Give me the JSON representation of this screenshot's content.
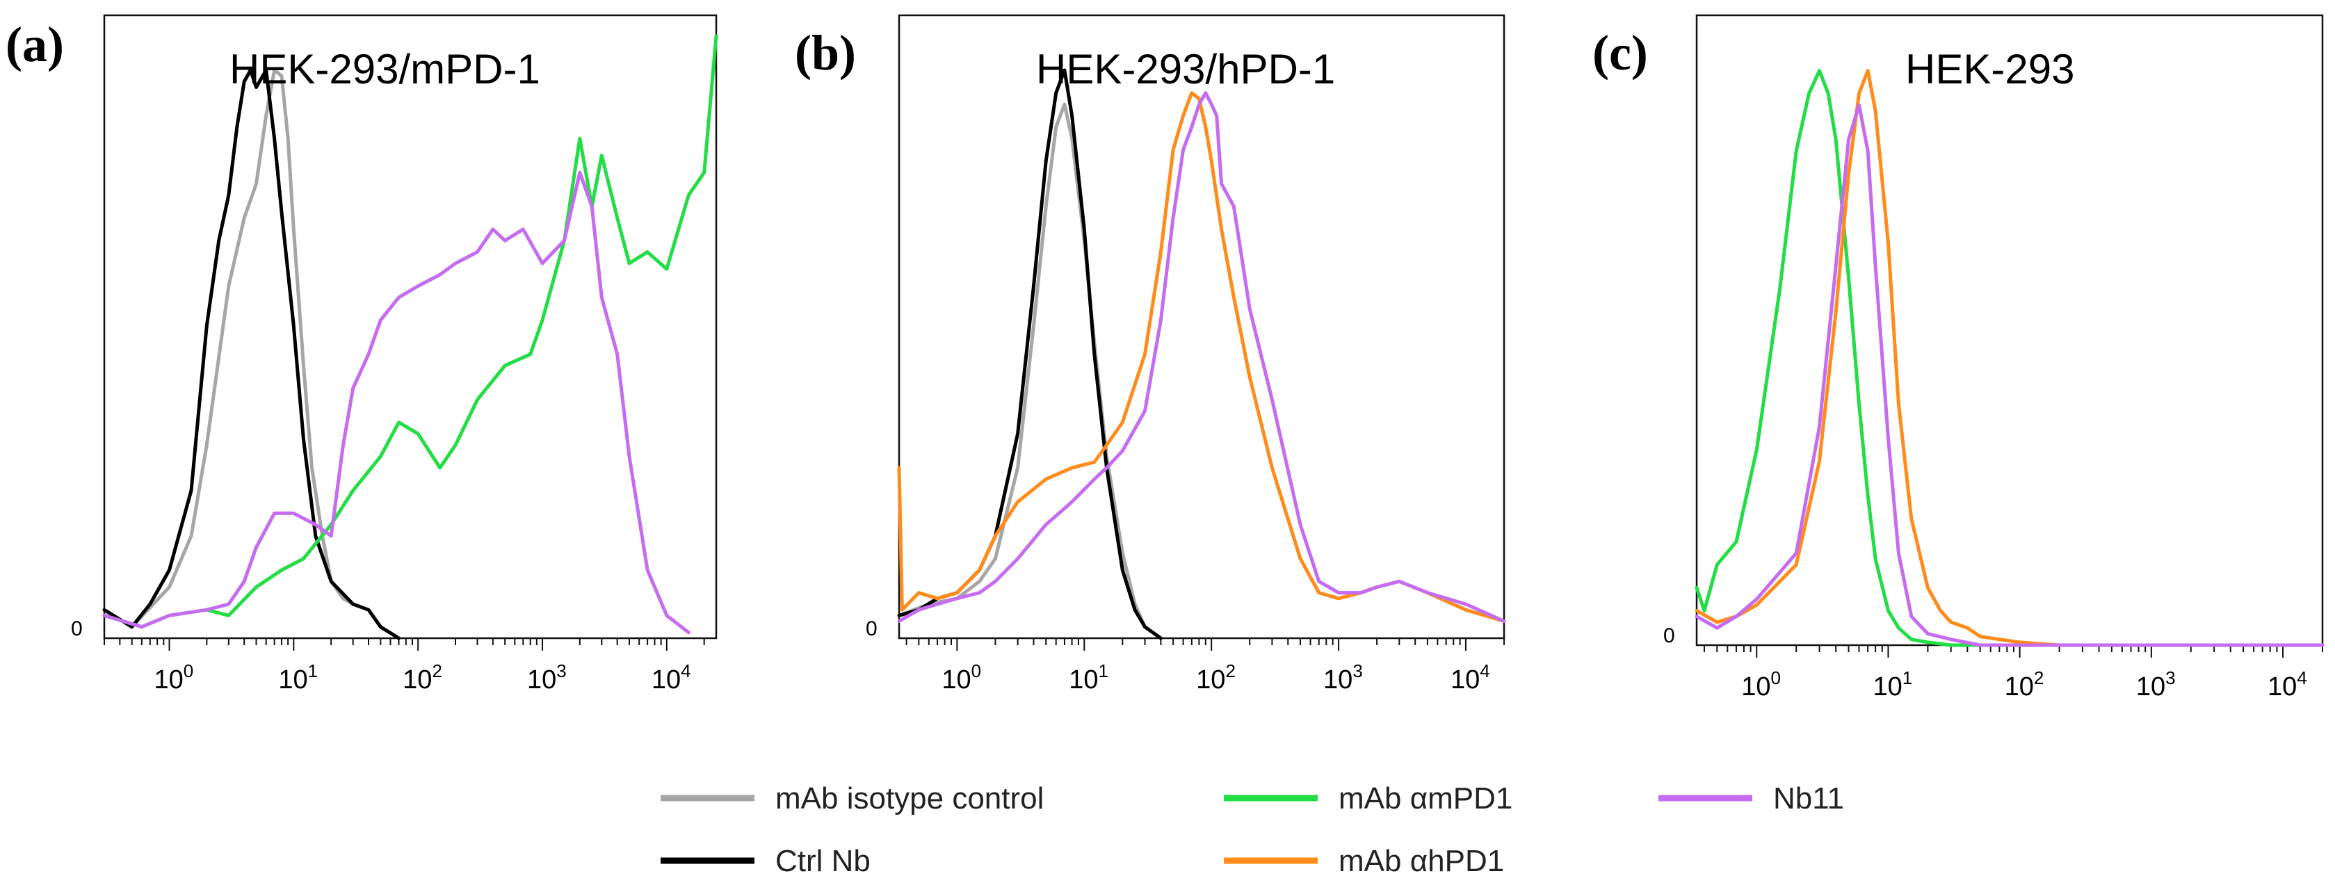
{
  "colors": {
    "mab_isotype": "#a6a6a6",
    "ctrl_nb": "#000000",
    "mab_ampd1": "#22dd44",
    "mab_ahpd1": "#ff8c1a",
    "nb11": "#c56cf0"
  },
  "legend": [
    {
      "key": "mab_isotype",
      "label": "mAb isotype control"
    },
    {
      "key": "ctrl_nb",
      "label": "Ctrl Nb"
    },
    {
      "key": "mab_ampd1",
      "label": "mAb αmPD1"
    },
    {
      "key": "mab_ahpd1",
      "label": "mAb αhPD1"
    },
    {
      "key": "nb11",
      "label": "Nb11"
    }
  ],
  "chart_data": [
    {
      "type": "line",
      "panel": "(a)",
      "title": "HEK-293/mPD-1",
      "xscale": "log",
      "xlim": [
        0.3,
        25000
      ],
      "ylim": [
        0,
        1.06
      ],
      "y_tick_label": "0",
      "x_ticks": [
        {
          "base": "10",
          "exp": "0"
        },
        {
          "base": "10",
          "exp": "1"
        },
        {
          "base": "10",
          "exp": "2"
        },
        {
          "base": "10",
          "exp": "3"
        },
        {
          "base": "10",
          "exp": "4"
        }
      ],
      "series": [
        {
          "key": "mab_isotype",
          "name": "mAb isotype control",
          "x": [
            0.3,
            0.5,
            1,
            1.5,
            2,
            3,
            4,
            5,
            6,
            7,
            8,
            9,
            10,
            12,
            14,
            17,
            20,
            25,
            30,
            40,
            50,
            70
          ],
          "y": [
            0.05,
            0.02,
            0.09,
            0.18,
            0.34,
            0.62,
            0.74,
            0.8,
            0.92,
            1.0,
            0.99,
            0.88,
            0.72,
            0.48,
            0.3,
            0.18,
            0.1,
            0.07,
            0.06,
            0.05,
            0.02,
            0.0
          ]
        },
        {
          "key": "ctrl_nb",
          "name": "Ctrl Nb",
          "x": [
            0.3,
            0.5,
            0.7,
            1,
            1.5,
            2,
            2.5,
            3,
            3.5,
            4,
            4.5,
            5,
            6,
            7,
            8,
            10,
            12,
            15,
            20,
            30,
            40,
            50,
            70
          ],
          "y": [
            0.05,
            0.02,
            0.06,
            0.12,
            0.26,
            0.55,
            0.7,
            0.78,
            0.9,
            0.98,
            1.0,
            0.97,
            1.0,
            0.88,
            0.75,
            0.55,
            0.35,
            0.18,
            0.1,
            0.06,
            0.05,
            0.02,
            0.0
          ]
        },
        {
          "key": "mab_ampd1",
          "name": "mAb αmPD1",
          "x": [
            0.3,
            0.6,
            1,
            2,
            3,
            5,
            8,
            12,
            20,
            30,
            50,
            70,
            100,
            150,
            200,
            300,
            500,
            800,
            1000,
            1500,
            2000,
            2500,
            3000,
            4000,
            5000,
            7000,
            10000,
            15000,
            20000,
            25000
          ],
          "y": [
            0.04,
            0.02,
            0.04,
            0.05,
            0.04,
            0.09,
            0.12,
            0.14,
            0.2,
            0.26,
            0.32,
            0.38,
            0.36,
            0.3,
            0.34,
            0.42,
            0.48,
            0.5,
            0.56,
            0.7,
            0.88,
            0.76,
            0.85,
            0.74,
            0.66,
            0.68,
            0.65,
            0.78,
            0.82,
            1.06
          ]
        },
        {
          "key": "nb11",
          "name": "Nb11",
          "x": [
            0.3,
            0.6,
            1,
            2,
            3,
            4,
            5,
            7,
            10,
            15,
            20,
            25,
            30,
            40,
            50,
            70,
            100,
            150,
            200,
            300,
            400,
            500,
            700,
            1000,
            1500,
            2000,
            2500,
            3000,
            4000,
            5000,
            7000,
            10000,
            15000
          ],
          "y": [
            0.04,
            0.02,
            0.04,
            0.05,
            0.06,
            0.1,
            0.16,
            0.22,
            0.22,
            0.2,
            0.18,
            0.34,
            0.44,
            0.5,
            0.56,
            0.6,
            0.62,
            0.64,
            0.66,
            0.68,
            0.72,
            0.7,
            0.72,
            0.66,
            0.7,
            0.82,
            0.76,
            0.6,
            0.5,
            0.32,
            0.12,
            0.04,
            0.01
          ]
        }
      ]
    },
    {
      "type": "line",
      "panel": "(b)",
      "title": "HEK-293/hPD-1",
      "xscale": "log",
      "xlim": [
        0.35,
        20000
      ],
      "ylim": [
        0,
        1.06
      ],
      "y_tick_label": "0",
      "x_ticks": [
        {
          "base": "10",
          "exp": "0"
        },
        {
          "base": "10",
          "exp": "1"
        },
        {
          "base": "10",
          "exp": "2"
        },
        {
          "base": "10",
          "exp": "3"
        },
        {
          "base": "10",
          "exp": "4"
        }
      ],
      "series": [
        {
          "key": "mab_isotype",
          "name": "mAb isotype control",
          "x": [
            0.35,
            0.6,
            1,
            1.5,
            2,
            3,
            4,
            5,
            6,
            7,
            8,
            10,
            12,
            15,
            20,
            25,
            30,
            40
          ],
          "y": [
            0.04,
            0.06,
            0.07,
            0.1,
            0.14,
            0.3,
            0.55,
            0.76,
            0.9,
            0.94,
            0.88,
            0.7,
            0.52,
            0.32,
            0.15,
            0.06,
            0.02,
            0.0
          ]
        },
        {
          "key": "ctrl_nb",
          "name": "Ctrl Nb",
          "x": [
            0.35,
            0.5,
            0.7,
            1,
            1.5,
            2,
            3,
            4,
            5,
            6,
            7,
            8,
            10,
            12,
            15,
            20,
            25,
            30,
            40
          ],
          "y": [
            0.04,
            0.05,
            0.07,
            0.08,
            0.12,
            0.18,
            0.36,
            0.62,
            0.84,
            0.96,
            1.0,
            0.92,
            0.72,
            0.5,
            0.3,
            0.12,
            0.05,
            0.02,
            0.0
          ]
        },
        {
          "key": "mab_ahpd1",
          "name": "mAb αhPD1",
          "x": [
            0.35,
            0.37,
            0.5,
            0.7,
            1,
            1.5,
            2,
            3,
            5,
            8,
            12,
            15,
            20,
            30,
            40,
            50,
            60,
            70,
            80,
            90,
            100,
            120,
            150,
            200,
            300,
            500,
            700,
            1000,
            1500,
            2000,
            3000,
            5000,
            10000,
            20000
          ],
          "y": [
            0.3,
            0.05,
            0.08,
            0.07,
            0.08,
            0.12,
            0.18,
            0.24,
            0.28,
            0.3,
            0.31,
            0.34,
            0.38,
            0.5,
            0.68,
            0.86,
            0.92,
            0.96,
            0.95,
            0.9,
            0.84,
            0.72,
            0.6,
            0.46,
            0.3,
            0.14,
            0.08,
            0.07,
            0.08,
            0.09,
            0.1,
            0.08,
            0.05,
            0.03
          ]
        },
        {
          "key": "nb11",
          "name": "Nb11",
          "x": [
            0.35,
            0.5,
            0.7,
            1,
            1.5,
            2,
            3,
            5,
            8,
            12,
            15,
            20,
            30,
            40,
            50,
            60,
            70,
            80,
            90,
            100,
            110,
            120,
            150,
            200,
            300,
            500,
            700,
            1000,
            1500,
            2000,
            3000,
            5000,
            10000,
            20000
          ],
          "y": [
            0.03,
            0.05,
            0.06,
            0.07,
            0.08,
            0.1,
            0.14,
            0.2,
            0.24,
            0.28,
            0.3,
            0.33,
            0.4,
            0.56,
            0.74,
            0.86,
            0.9,
            0.94,
            0.96,
            0.94,
            0.92,
            0.8,
            0.76,
            0.58,
            0.42,
            0.2,
            0.1,
            0.08,
            0.08,
            0.09,
            0.1,
            0.08,
            0.06,
            0.03
          ]
        }
      ]
    },
    {
      "type": "line",
      "panel": "(c)",
      "title": "HEK-293",
      "xscale": "log",
      "xlim": [
        0.35,
        20000
      ],
      "ylim": [
        0,
        1.06
      ],
      "y_tick_label": "0",
      "x_ticks": [
        {
          "base": "10",
          "exp": "0"
        },
        {
          "base": "10",
          "exp": "1"
        },
        {
          "base": "10",
          "exp": "2"
        },
        {
          "base": "10",
          "exp": "3"
        },
        {
          "base": "10",
          "exp": "4"
        }
      ],
      "series": [
        {
          "key": "mab_ampd1",
          "name": "mAb αmPD1",
          "x": [
            0.35,
            0.4,
            0.5,
            0.7,
            1,
            1.5,
            2,
            2.5,
            3,
            3.5,
            4,
            5,
            6,
            7,
            8,
            10,
            12,
            15,
            20,
            30,
            50,
            100,
            1000,
            20000
          ],
          "y": [
            0.1,
            0.06,
            0.14,
            0.18,
            0.34,
            0.62,
            0.86,
            0.96,
            1.0,
            0.96,
            0.88,
            0.64,
            0.42,
            0.26,
            0.15,
            0.06,
            0.03,
            0.01,
            0.005,
            0.0,
            0.0,
            0.0,
            0.0,
            0.0
          ]
        },
        {
          "key": "mab_ahpd1",
          "name": "mAb αhPD1",
          "x": [
            0.35,
            0.5,
            0.7,
            1,
            2,
            3,
            4,
            5,
            6,
            7,
            8,
            10,
            12,
            15,
            20,
            25,
            30,
            40,
            50,
            70,
            100,
            200,
            1000,
            20000
          ],
          "y": [
            0.06,
            0.04,
            0.05,
            0.07,
            0.14,
            0.32,
            0.58,
            0.82,
            0.96,
            1.0,
            0.93,
            0.7,
            0.42,
            0.22,
            0.1,
            0.06,
            0.04,
            0.03,
            0.015,
            0.01,
            0.005,
            0.0,
            0.0,
            0.0
          ]
        },
        {
          "key": "nb11",
          "name": "Nb11",
          "x": [
            0.35,
            0.5,
            0.7,
            1,
            2,
            3,
            4,
            5,
            6,
            7,
            8,
            10,
            12,
            15,
            20,
            30,
            50,
            100,
            1000,
            20000
          ],
          "y": [
            0.05,
            0.03,
            0.05,
            0.08,
            0.16,
            0.38,
            0.66,
            0.88,
            0.94,
            0.86,
            0.66,
            0.36,
            0.16,
            0.05,
            0.02,
            0.01,
            0.0,
            0.0,
            0.0,
            0.0
          ]
        }
      ]
    }
  ]
}
